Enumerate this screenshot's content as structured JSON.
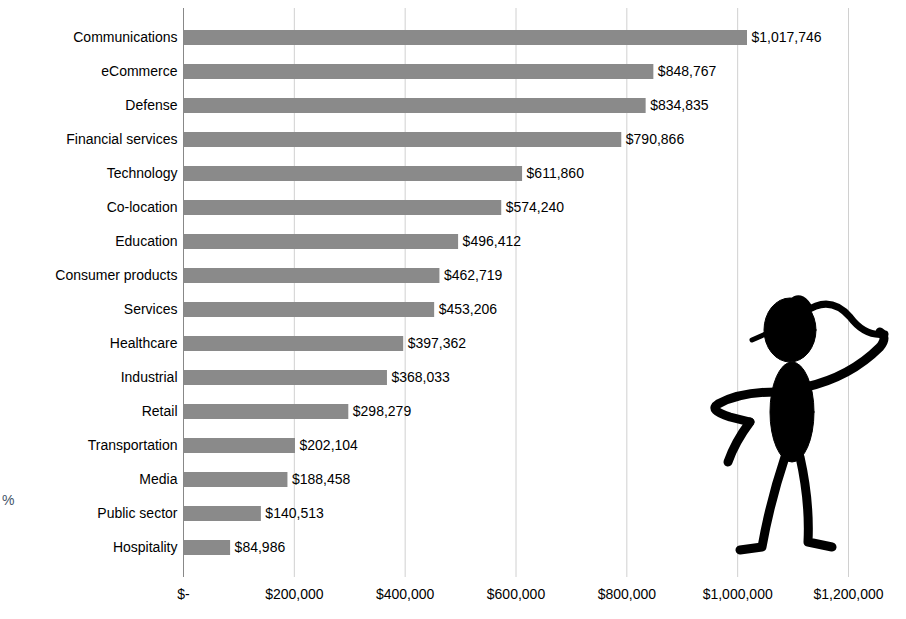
{
  "chart_data": {
    "type": "bar",
    "orientation": "horizontal",
    "categories": [
      "Communications",
      "eCommerce",
      "Defense",
      "Financial services",
      "Technology",
      "Co-location",
      "Education",
      "Consumer products",
      "Services",
      "Healthcare",
      "Industrial",
      "Retail",
      "Transportation",
      "Media",
      "Public sector",
      "Hospitality"
    ],
    "values": [
      1017746,
      848767,
      834835,
      790866,
      611860,
      574240,
      496412,
      462719,
      453206,
      397362,
      368033,
      298279,
      202104,
      188458,
      140513,
      84986
    ],
    "value_labels": [
      "$1,017,746",
      "$848,767",
      "$834,835",
      "$790,866",
      "$611,860",
      "$574,240",
      "$496,412",
      "$462,719",
      "$453,206",
      "$397,362",
      "$368,033",
      "$298,279",
      "$202,104",
      "$188,458",
      "$140,513",
      "$84,986"
    ],
    "data_labels": true,
    "color": "#8a8a8a",
    "xlim": [
      0,
      1200000
    ],
    "xticks": [
      {
        "value": 0,
        "label": "$-"
      },
      {
        "value": 200000,
        "label": "$200,000"
      },
      {
        "value": 400000,
        "label": "$400,000"
      },
      {
        "value": 600000,
        "label": "$600,000"
      },
      {
        "value": 800000,
        "label": "$800,000"
      },
      {
        "value": 1000000,
        "label": "$1,000,000"
      },
      {
        "value": 1200000,
        "label": "$1,200,000"
      }
    ],
    "grid": true,
    "annotations": [
      "%"
    ]
  }
}
